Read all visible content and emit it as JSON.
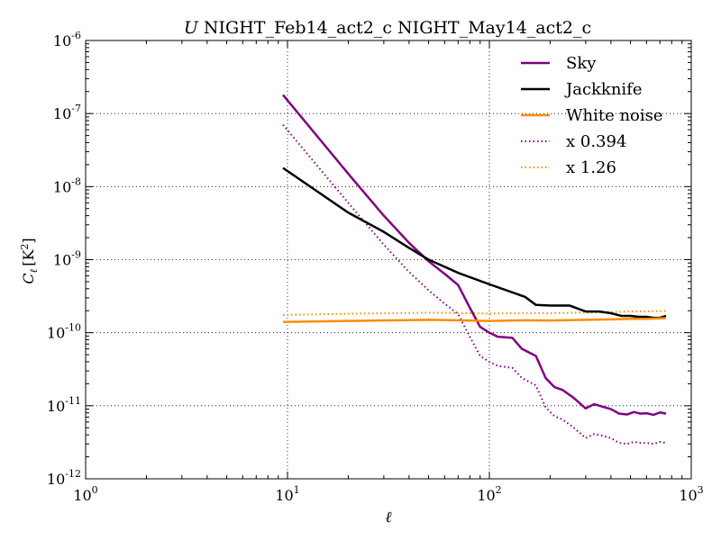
{
  "chart_data": {
    "type": "line",
    "title_prefix": "U",
    "title": "NIGHT_Feb14_act2_c NIGHT_May14_act2_c",
    "xlabel": "ℓ",
    "ylabel": "C",
    "ylabel_sub": "ℓ",
    "ylabel_unit": "[K",
    "ylabel_unit_sup": "2",
    "ylabel_unit_close": "]",
    "x_scale": "log",
    "y_scale": "log",
    "xlim": [
      1,
      1000
    ],
    "ylim": [
      1e-12,
      1e-06
    ],
    "grid": true,
    "legend_position": "top-right",
    "x_ticks": [
      {
        "value": 1,
        "base": "10",
        "exp": "0"
      },
      {
        "value": 10,
        "base": "10",
        "exp": "1"
      },
      {
        "value": 100,
        "base": "10",
        "exp": "2"
      },
      {
        "value": 1000,
        "base": "10",
        "exp": "3"
      }
    ],
    "y_ticks": [
      {
        "value": 1e-12,
        "base": "10",
        "exp": "-12"
      },
      {
        "value": 1e-11,
        "base": "10",
        "exp": "-11"
      },
      {
        "value": 1e-10,
        "base": "10",
        "exp": "-10"
      },
      {
        "value": 1e-09,
        "base": "10",
        "exp": "-9"
      },
      {
        "value": 1e-08,
        "base": "10",
        "exp": "-8"
      },
      {
        "value": 1e-07,
        "base": "10",
        "exp": "-7"
      },
      {
        "value": 1e-06,
        "base": "10",
        "exp": "-6"
      }
    ],
    "series": [
      {
        "name": "Sky",
        "color": "#800080",
        "style": "solid",
        "points": [
          [
            9.5,
            1.8e-07
          ],
          [
            20,
            1.5e-08
          ],
          [
            30,
            4e-09
          ],
          [
            40,
            1.7e-09
          ],
          [
            50,
            9.5e-10
          ],
          [
            60,
            6.4e-10
          ],
          [
            70,
            4.5e-10
          ],
          [
            80,
            2.2e-10
          ],
          [
            90,
            1.2e-10
          ],
          [
            100,
            1e-10
          ],
          [
            110,
            8.8e-11
          ],
          [
            130,
            8.5e-11
          ],
          [
            145,
            6e-11
          ],
          [
            170,
            4.8e-11
          ],
          [
            190,
            2.4e-11
          ],
          [
            210,
            1.8e-11
          ],
          [
            230,
            1.65e-11
          ],
          [
            260,
            1.3e-11
          ],
          [
            300,
            9.2e-12
          ],
          [
            330,
            1.05e-11
          ],
          [
            360,
            9.8e-12
          ],
          [
            400,
            9e-12
          ],
          [
            440,
            7.8e-12
          ],
          [
            480,
            7.6e-12
          ],
          [
            520,
            8.2e-12
          ],
          [
            560,
            7.8e-12
          ],
          [
            600,
            7.9e-12
          ],
          [
            650,
            7.5e-12
          ],
          [
            700,
            8.1e-12
          ],
          [
            750,
            7.8e-12
          ]
        ]
      },
      {
        "name": "Jackknife",
        "color": "#000000",
        "style": "solid",
        "points": [
          [
            9.5,
            1.8e-08
          ],
          [
            20,
            4.4e-09
          ],
          [
            30,
            2.4e-09
          ],
          [
            40,
            1.45e-09
          ],
          [
            50,
            1e-09
          ],
          [
            70,
            6.6e-10
          ],
          [
            100,
            4.6e-10
          ],
          [
            150,
            3.1e-10
          ],
          [
            170,
            2.4e-10
          ],
          [
            200,
            2.35e-10
          ],
          [
            250,
            2.35e-10
          ],
          [
            300,
            1.95e-10
          ],
          [
            350,
            1.95e-10
          ],
          [
            400,
            1.85e-10
          ],
          [
            450,
            1.7e-10
          ],
          [
            500,
            1.7e-10
          ],
          [
            550,
            1.65e-10
          ],
          [
            600,
            1.65e-10
          ],
          [
            650,
            1.6e-10
          ],
          [
            700,
            1.6e-10
          ],
          [
            750,
            1.7e-10
          ]
        ]
      },
      {
        "name": "White noise",
        "color": "#ff8c00",
        "style": "solid",
        "points": [
          [
            9.5,
            1.4e-10
          ],
          [
            20,
            1.45e-10
          ],
          [
            50,
            1.5e-10
          ],
          [
            70,
            1.48e-10
          ],
          [
            100,
            1.45e-10
          ],
          [
            150,
            1.48e-10
          ],
          [
            200,
            1.47e-10
          ],
          [
            300,
            1.5e-10
          ],
          [
            400,
            1.52e-10
          ],
          [
            500,
            1.55e-10
          ],
          [
            600,
            1.55e-10
          ],
          [
            750,
            1.58e-10
          ]
        ]
      },
      {
        "name": "x 0.394",
        "color": "#800080",
        "style": "dotted",
        "points": [
          [
            9.5,
            7e-08
          ],
          [
            20,
            6e-09
          ],
          [
            30,
            1.6e-09
          ],
          [
            40,
            6.8e-10
          ],
          [
            50,
            3.8e-10
          ],
          [
            60,
            2.5e-10
          ],
          [
            70,
            1.8e-10
          ],
          [
            80,
            8.8e-11
          ],
          [
            90,
            4.8e-11
          ],
          [
            100,
            4e-11
          ],
          [
            110,
            3.5e-11
          ],
          [
            130,
            3.3e-11
          ],
          [
            145,
            2.4e-11
          ],
          [
            170,
            1.9e-11
          ],
          [
            190,
            9.5e-12
          ],
          [
            210,
            7.2e-12
          ],
          [
            230,
            6.5e-12
          ],
          [
            260,
            5.1e-12
          ],
          [
            300,
            3.6e-12
          ],
          [
            330,
            4.1e-12
          ],
          [
            360,
            3.9e-12
          ],
          [
            400,
            3.6e-12
          ],
          [
            440,
            3.1e-12
          ],
          [
            480,
            3e-12
          ],
          [
            520,
            3.2e-12
          ],
          [
            560,
            3.1e-12
          ],
          [
            600,
            3.1e-12
          ],
          [
            650,
            3e-12
          ],
          [
            700,
            3.2e-12
          ],
          [
            750,
            3.1e-12
          ]
        ]
      },
      {
        "name": "x 1.26",
        "color": "#ff8c00",
        "style": "dotted",
        "points": [
          [
            9.5,
            1.75e-10
          ],
          [
            20,
            1.82e-10
          ],
          [
            50,
            1.88e-10
          ],
          [
            70,
            1.86e-10
          ],
          [
            100,
            1.83e-10
          ],
          [
            150,
            1.86e-10
          ],
          [
            200,
            1.85e-10
          ],
          [
            300,
            1.89e-10
          ],
          [
            400,
            1.91e-10
          ],
          [
            500,
            1.95e-10
          ],
          [
            600,
            1.95e-10
          ],
          [
            750,
            1.99e-10
          ]
        ]
      }
    ]
  }
}
